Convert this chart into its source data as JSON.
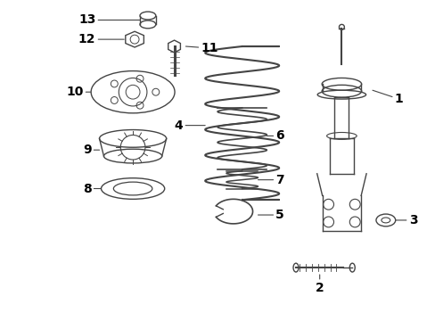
{
  "bg_color": "#ffffff",
  "line_color": "#444444",
  "label_color": "#000000",
  "figsize": [
    4.89,
    3.6
  ],
  "dpi": 100
}
